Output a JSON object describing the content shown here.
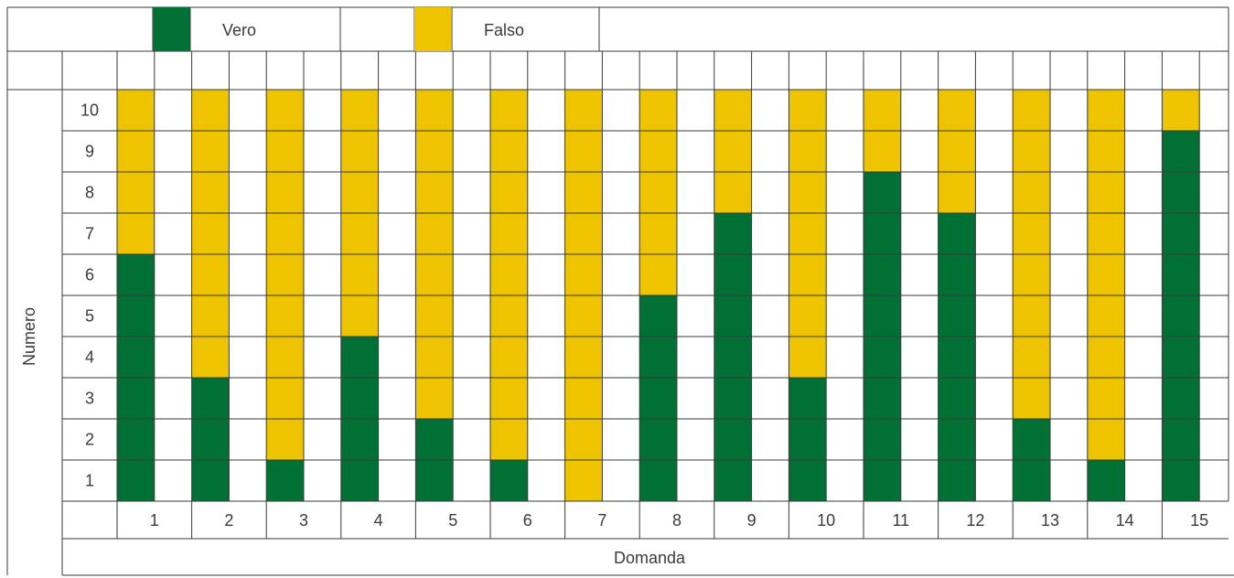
{
  "chart_data": {
    "type": "bar",
    "stacked": true,
    "legend": {
      "placement": "top-left",
      "entries": [
        {
          "label": "Vero",
          "color": "#007034"
        },
        {
          "label": "Falso",
          "color": "#eec400"
        }
      ]
    },
    "xlabel": "Domanda",
    "ylabel": "Numero",
    "ylim": [
      0,
      10
    ],
    "grid": true,
    "categories": [
      "1",
      "2",
      "3",
      "4",
      "5",
      "6",
      "7",
      "8",
      "9",
      "10",
      "11",
      "12",
      "13",
      "14",
      "15"
    ],
    "y_ticks": [
      "1",
      "2",
      "3",
      "4",
      "5",
      "6",
      "7",
      "8",
      "9",
      "10"
    ],
    "series": [
      {
        "name": "Vero",
        "color": "#007034",
        "values": [
          6,
          3,
          1,
          4,
          2,
          1,
          0,
          5,
          7,
          3,
          8,
          7,
          2,
          1,
          9
        ]
      },
      {
        "name": "Falso",
        "color": "#eec400",
        "values": [
          4,
          7,
          9,
          6,
          8,
          9,
          10,
          5,
          3,
          7,
          2,
          3,
          8,
          9,
          1
        ]
      }
    ]
  }
}
